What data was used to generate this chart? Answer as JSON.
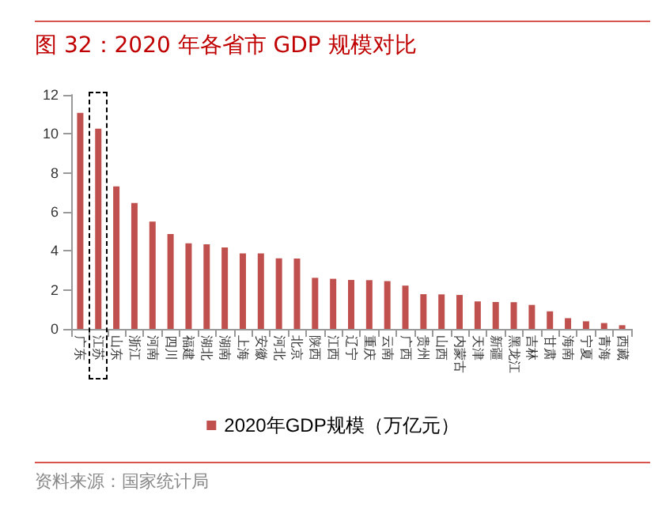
{
  "chart_data": {
    "type": "bar",
    "title": "图 32：2020 年各省市 GDP 规模对比",
    "categories": [
      "广东",
      "江苏",
      "山东",
      "浙江",
      "河南",
      "四川",
      "福建",
      "湖北",
      "湖南",
      "上海",
      "安徽",
      "河北",
      "北京",
      "陕西",
      "江西",
      "辽宁",
      "重庆",
      "云南",
      "广西",
      "贵州",
      "山西",
      "内蒙古",
      "天津",
      "新疆",
      "黑龙江",
      "吉林",
      "甘肃",
      "海南",
      "宁夏",
      "青海",
      "西藏"
    ],
    "series": [
      {
        "name": "2020年GDP规模（万亿元）",
        "color": "#c0504d",
        "values": [
          11.08,
          10.27,
          7.31,
          6.46,
          5.5,
          4.86,
          4.39,
          4.34,
          4.18,
          3.87,
          3.87,
          3.62,
          3.61,
          2.62,
          2.57,
          2.51,
          2.5,
          2.45,
          2.22,
          1.78,
          1.77,
          1.74,
          1.41,
          1.38,
          1.37,
          1.23,
          0.9,
          0.55,
          0.39,
          0.3,
          0.19
        ]
      }
    ],
    "ylim": [
      0,
      12
    ],
    "yticks": [
      0,
      2,
      4,
      6,
      8,
      10,
      12
    ],
    "grid": false,
    "legend": "bottom",
    "annotations": [
      "资料来源：国家统计局"
    ]
  }
}
